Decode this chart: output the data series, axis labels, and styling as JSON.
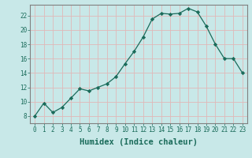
{
  "x": [
    0,
    1,
    2,
    3,
    4,
    5,
    6,
    7,
    8,
    9,
    10,
    11,
    12,
    13,
    14,
    15,
    16,
    17,
    18,
    19,
    20,
    21,
    22,
    23
  ],
  "y": [
    8,
    9.8,
    8.5,
    9.2,
    10.5,
    11.8,
    11.5,
    12.0,
    12.5,
    13.5,
    15.3,
    17.0,
    19.0,
    21.5,
    22.3,
    22.2,
    22.3,
    23.0,
    22.5,
    20.5,
    18.0,
    16.0,
    16.0,
    14.0
  ],
  "line_color": "#1a6b5a",
  "marker": "D",
  "marker_size": 2.2,
  "bg_color": "#c8e8e8",
  "grid_color": "#e0b8b8",
  "xlabel": "Humidex (Indice chaleur)",
  "ylabel": "",
  "xlim": [
    -0.5,
    23.5
  ],
  "ylim": [
    7,
    23.5
  ],
  "yticks": [
    8,
    10,
    12,
    14,
    16,
    18,
    20,
    22
  ],
  "xticks": [
    0,
    1,
    2,
    3,
    4,
    5,
    6,
    7,
    8,
    9,
    10,
    11,
    12,
    13,
    14,
    15,
    16,
    17,
    18,
    19,
    20,
    21,
    22,
    23
  ],
  "tick_color": "#1a6b5a",
  "spine_color": "#808080",
  "xlabel_color": "#1a6b5a",
  "xlabel_fontsize": 7.5,
  "tick_fontsize": 5.5
}
